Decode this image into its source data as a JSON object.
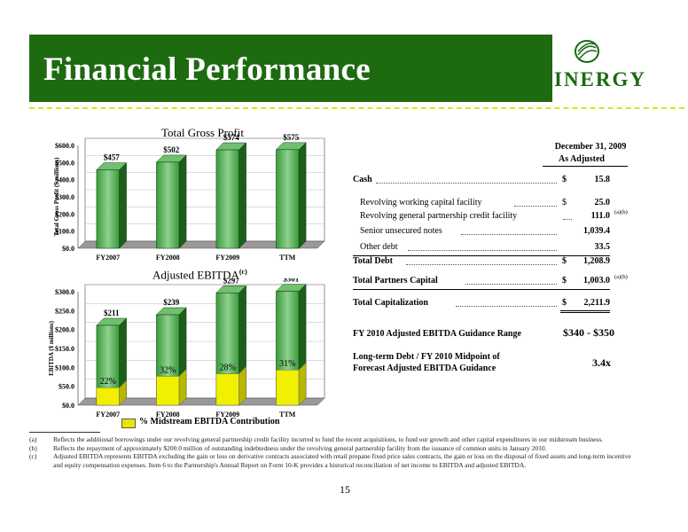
{
  "header": {
    "title": "Financial Performance",
    "logo_text": "INERGY"
  },
  "chart_data": [
    {
      "type": "bar",
      "title": "Total Gross Profit",
      "ylabel": "Total Gross Profit ($ millions)",
      "categories": [
        "FY2007",
        "FY2008",
        "FY2009",
        "TTM"
      ],
      "values": [
        457,
        502,
        574,
        575
      ],
      "data_labels": [
        "$457",
        "$502",
        "$574",
        "$575"
      ],
      "ylim": [
        0,
        600
      ],
      "yticks": [
        "$0.0",
        "$100.0",
        "$200.0",
        "$300.0",
        "$400.0",
        "$500.0",
        "$600.0"
      ],
      "bar_color": "#2e8b2e"
    },
    {
      "type": "bar",
      "title": "Adjusted EBITDA",
      "title_note": "(c)",
      "ylabel": "EBITDA ($ millions)",
      "categories": [
        "FY2007",
        "FY2008",
        "FY2009",
        "TTM"
      ],
      "values": [
        211,
        239,
        297,
        301
      ],
      "data_labels": [
        "$211",
        "$239",
        "$297",
        "$301"
      ],
      "ylim": [
        0,
        300
      ],
      "yticks": [
        "$0.0",
        "$50.0",
        "$100.0",
        "$150.0",
        "$200.0",
        "$250.0",
        "$300.0"
      ],
      "series": [
        {
          "name": "% Midstream EBITDA Contribution",
          "percent_labels": [
            "22%",
            "32%",
            "28%",
            "31%"
          ],
          "fractions": [
            0.22,
            0.32,
            0.28,
            0.31
          ],
          "color": "#e6e600"
        }
      ],
      "bar_color": "#2e8b2e"
    }
  ],
  "table": {
    "header_line1": "December 31, 2009",
    "header_line2": "As Adjusted",
    "rows": [
      {
        "label": "Cash",
        "dollar": "$",
        "value": "15.8",
        "note": "",
        "bold": true
      },
      {
        "label": "Revolving working capital facility",
        "dollar": "$",
        "value": "25.0",
        "note": "",
        "bold": false
      },
      {
        "label": "Revolving general partnership credit facility",
        "dollar": "",
        "value": "111.0",
        "note": "(a)(b)",
        "bold": false
      },
      {
        "label": "Senior unsecured notes",
        "dollar": "",
        "value": "1,039.4",
        "note": "",
        "bold": false
      },
      {
        "label": "Other debt",
        "dollar": "",
        "value": "33.5",
        "note": "",
        "bold": false
      },
      {
        "label": "Total Debt",
        "dollar": "$",
        "value": "1,208.9",
        "note": "",
        "bold": true
      },
      {
        "label": "Total Partners Capital",
        "dollar": "$",
        "value": "1,003.0",
        "note": "(a)(b)",
        "bold": true
      },
      {
        "label": "Total Capitalization",
        "dollar": "$",
        "value": "2,211.9",
        "note": "",
        "bold": true
      }
    ],
    "guidance_label": "FY 2010 Adjusted EBITDA Guidance Range",
    "guidance_value": "$340 - $350",
    "ltd_label_1": "Long-term Debt / FY 2010 Midpoint of",
    "ltd_label_2": "Forecast Adjusted EBITDA Guidance",
    "ltd_value": "3.4x"
  },
  "footnotes": [
    {
      "mark": "(a)",
      "text": "Reflects the additional borrowings under our revolving general partnership credit facility incurred to fund the recent acquisitions, to fund our growth and other capital expenditures in our midstream business."
    },
    {
      "mark": "(b)",
      "text": "Reflects the repayment of approximately $200.0 million of outstanding indebtedness under the revolving general partnership facility from the issuance of common units in January 2010."
    },
    {
      "mark": "(c)",
      "text": "Adjusted EBITDA represents EBITDA excluding the gain or loss on derivative contracts associated with retail propane fixed price sales contracts, the gain or loss on the disposal of fixed assets and long-term incentive and equity compensation expenses. Item 6 to the Partnership's Annual Report on Form 10-K provides a historical reconciliation of net income to EBITDA and adjusted EBITDA."
    }
  ],
  "page_number": "15"
}
